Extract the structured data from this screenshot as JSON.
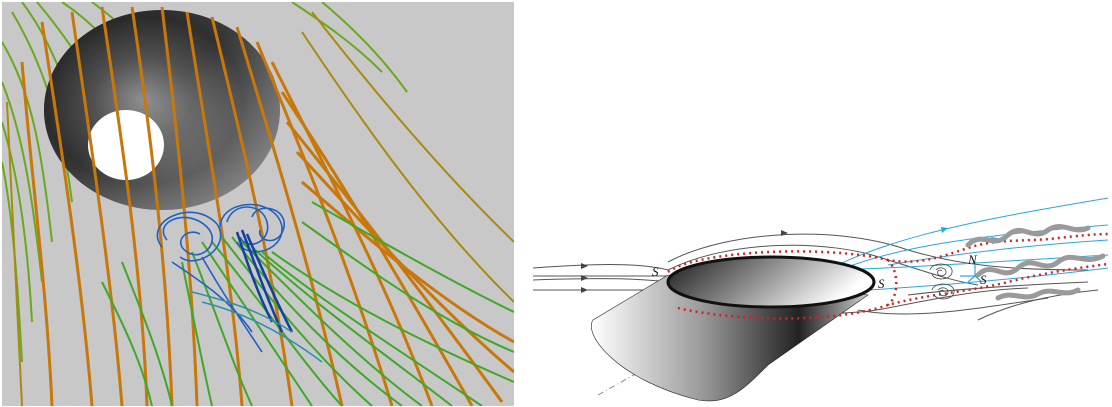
{
  "left_view": {
    "background_color": "#c8c8c8",
    "streamline_colors": {
      "outer": "#c8780a",
      "mid": "#8aa81c",
      "wake": "#3fa828",
      "vortex": "#2060c0",
      "vortex_core": "#1040a0"
    }
  },
  "right_view": {
    "labels": {
      "separation_front": "S",
      "separation_rear": "S",
      "node": "N",
      "saddle": "S"
    },
    "colors": {
      "streamline_gray": "#555555",
      "streamline_cyan": "#2aa8d8",
      "dotted_boundary": "#d42020",
      "ring_outline": "#111111",
      "vortex_tube": "#9a9a9a"
    }
  }
}
